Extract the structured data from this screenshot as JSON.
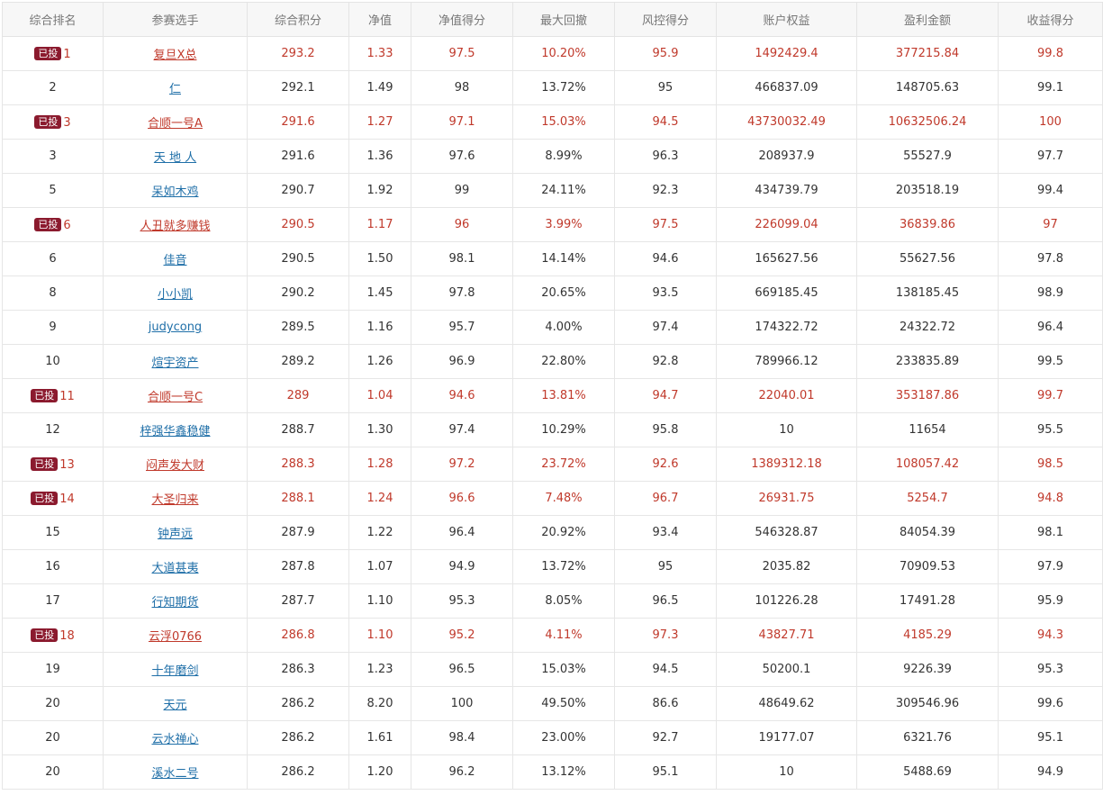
{
  "columns": [
    "综合排名",
    "参赛选手",
    "综合积分",
    "净值",
    "净值得分",
    "最大回撤",
    "风控得分",
    "账户权益",
    "盈利金额",
    "收益得分"
  ],
  "badge_label": "已投",
  "colors": {
    "highlight_text": "#c0392b",
    "link": "#1f6fa8",
    "badge_bg": "#8b1a2e"
  },
  "rows": [
    {
      "rank": "1",
      "invested": true,
      "name": "复旦X总",
      "score": "293.2",
      "nav": "1.33",
      "nav_score": "97.5",
      "max_drawdown": "10.20%",
      "risk_score": "95.9",
      "equity": "1492429.4",
      "profit": "377215.84",
      "return_score": "99.8"
    },
    {
      "rank": "2",
      "invested": false,
      "name": "仁",
      "score": "292.1",
      "nav": "1.49",
      "nav_score": "98",
      "max_drawdown": "13.72%",
      "risk_score": "95",
      "equity": "466837.09",
      "profit": "148705.63",
      "return_score": "99.1"
    },
    {
      "rank": "3",
      "invested": true,
      "name": "合顺一号A",
      "score": "291.6",
      "nav": "1.27",
      "nav_score": "97.1",
      "max_drawdown": "15.03%",
      "risk_score": "94.5",
      "equity": "43730032.49",
      "profit": "10632506.24",
      "return_score": "100"
    },
    {
      "rank": "3",
      "invested": false,
      "name": "天 地 人",
      "score": "291.6",
      "nav": "1.36",
      "nav_score": "97.6",
      "max_drawdown": "8.99%",
      "risk_score": "96.3",
      "equity": "208937.9",
      "profit": "55527.9",
      "return_score": "97.7"
    },
    {
      "rank": "5",
      "invested": false,
      "name": "呆如木鸡",
      "score": "290.7",
      "nav": "1.92",
      "nav_score": "99",
      "max_drawdown": "24.11%",
      "risk_score": "92.3",
      "equity": "434739.79",
      "profit": "203518.19",
      "return_score": "99.4"
    },
    {
      "rank": "6",
      "invested": true,
      "name": "人丑就多赚钱",
      "score": "290.5",
      "nav": "1.17",
      "nav_score": "96",
      "max_drawdown": "3.99%",
      "risk_score": "97.5",
      "equity": "226099.04",
      "profit": "36839.86",
      "return_score": "97"
    },
    {
      "rank": "6",
      "invested": false,
      "name": "佳音",
      "score": "290.5",
      "nav": "1.50",
      "nav_score": "98.1",
      "max_drawdown": "14.14%",
      "risk_score": "94.6",
      "equity": "165627.56",
      "profit": "55627.56",
      "return_score": "97.8"
    },
    {
      "rank": "8",
      "invested": false,
      "name": "小小凯",
      "score": "290.2",
      "nav": "1.45",
      "nav_score": "97.8",
      "max_drawdown": "20.65%",
      "risk_score": "93.5",
      "equity": "669185.45",
      "profit": "138185.45",
      "return_score": "98.9"
    },
    {
      "rank": "9",
      "invested": false,
      "name": "judycong",
      "score": "289.5",
      "nav": "1.16",
      "nav_score": "95.7",
      "max_drawdown": "4.00%",
      "risk_score": "97.4",
      "equity": "174322.72",
      "profit": "24322.72",
      "return_score": "96.4"
    },
    {
      "rank": "10",
      "invested": false,
      "name": "煊宇资产",
      "score": "289.2",
      "nav": "1.26",
      "nav_score": "96.9",
      "max_drawdown": "22.80%",
      "risk_score": "92.8",
      "equity": "789966.12",
      "profit": "233835.89",
      "return_score": "99.5"
    },
    {
      "rank": "11",
      "invested": true,
      "name": "合顺一号C",
      "score": "289",
      "nav": "1.04",
      "nav_score": "94.6",
      "max_drawdown": "13.81%",
      "risk_score": "94.7",
      "equity": "22040.01",
      "profit": "353187.86",
      "return_score": "99.7"
    },
    {
      "rank": "12",
      "invested": false,
      "name": "梓强华鑫稳健",
      "score": "288.7",
      "nav": "1.30",
      "nav_score": "97.4",
      "max_drawdown": "10.29%",
      "risk_score": "95.8",
      "equity": "10",
      "profit": "11654",
      "return_score": "95.5"
    },
    {
      "rank": "13",
      "invested": true,
      "name": "闷声发大财",
      "score": "288.3",
      "nav": "1.28",
      "nav_score": "97.2",
      "max_drawdown": "23.72%",
      "risk_score": "92.6",
      "equity": "1389312.18",
      "profit": "108057.42",
      "return_score": "98.5"
    },
    {
      "rank": "14",
      "invested": true,
      "name": "大圣归来",
      "score": "288.1",
      "nav": "1.24",
      "nav_score": "96.6",
      "max_drawdown": "7.48%",
      "risk_score": "96.7",
      "equity": "26931.75",
      "profit": "5254.7",
      "return_score": "94.8"
    },
    {
      "rank": "15",
      "invested": false,
      "name": "钟声远",
      "score": "287.9",
      "nav": "1.22",
      "nav_score": "96.4",
      "max_drawdown": "20.92%",
      "risk_score": "93.4",
      "equity": "546328.87",
      "profit": "84054.39",
      "return_score": "98.1"
    },
    {
      "rank": "16",
      "invested": false,
      "name": "大道甚夷",
      "score": "287.8",
      "nav": "1.07",
      "nav_score": "94.9",
      "max_drawdown": "13.72%",
      "risk_score": "95",
      "equity": "2035.82",
      "profit": "70909.53",
      "return_score": "97.9"
    },
    {
      "rank": "17",
      "invested": false,
      "name": "行知期货",
      "score": "287.7",
      "nav": "1.10",
      "nav_score": "95.3",
      "max_drawdown": "8.05%",
      "risk_score": "96.5",
      "equity": "101226.28",
      "profit": "17491.28",
      "return_score": "95.9"
    },
    {
      "rank": "18",
      "invested": true,
      "name": "云浮0766",
      "score": "286.8",
      "nav": "1.10",
      "nav_score": "95.2",
      "max_drawdown": "4.11%",
      "risk_score": "97.3",
      "equity": "43827.71",
      "profit": "4185.29",
      "return_score": "94.3"
    },
    {
      "rank": "19",
      "invested": false,
      "name": "十年磨剑",
      "score": "286.3",
      "nav": "1.23",
      "nav_score": "96.5",
      "max_drawdown": "15.03%",
      "risk_score": "94.5",
      "equity": "50200.1",
      "profit": "9226.39",
      "return_score": "95.3"
    },
    {
      "rank": "20",
      "invested": false,
      "name": "天元",
      "score": "286.2",
      "nav": "8.20",
      "nav_score": "100",
      "max_drawdown": "49.50%",
      "risk_score": "86.6",
      "equity": "48649.62",
      "profit": "309546.96",
      "return_score": "99.6"
    },
    {
      "rank": "20",
      "invested": false,
      "name": "云水禅心",
      "score": "286.2",
      "nav": "1.61",
      "nav_score": "98.4",
      "max_drawdown": "23.00%",
      "risk_score": "92.7",
      "equity": "19177.07",
      "profit": "6321.76",
      "return_score": "95.1"
    },
    {
      "rank": "20",
      "invested": false,
      "name": "溪水二号",
      "score": "286.2",
      "nav": "1.20",
      "nav_score": "96.2",
      "max_drawdown": "13.12%",
      "risk_score": "95.1",
      "equity": "10",
      "profit": "5488.69",
      "return_score": "94.9"
    }
  ]
}
